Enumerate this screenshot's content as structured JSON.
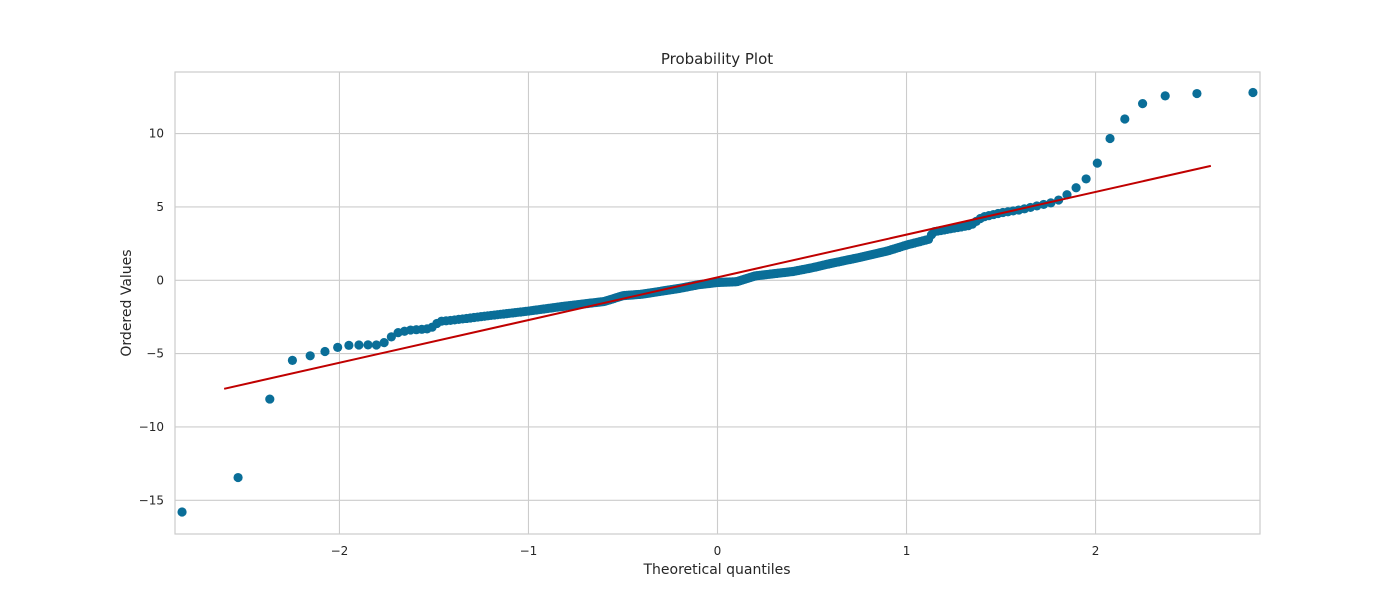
{
  "chart_data": {
    "type": "scatter",
    "title": "Probability Plot",
    "xlabel": "Theoretical quantiles",
    "ylabel": "Ordered Values",
    "xlim": [
      -2.87,
      2.87
    ],
    "ylim": [
      -17.3,
      14.2
    ],
    "xticks": [
      -2,
      -1,
      0,
      1,
      2
    ],
    "xtick_labels": [
      "−2",
      "−1",
      "0",
      "1",
      "2"
    ],
    "yticks": [
      -15,
      -10,
      -5,
      0,
      5,
      10
    ],
    "ytick_labels": [
      "−15",
      "−10",
      "−5",
      "0",
      "5",
      "10"
    ],
    "grid": true,
    "legend": "none",
    "colors": {
      "points": "#0a6e98",
      "line": "#c00000",
      "grid": "#cccccc",
      "frame": "#cccccc"
    },
    "fit_line": {
      "x": [
        -2.61,
        2.61
      ],
      "y": [
        -7.4,
        7.8
      ]
    },
    "anchors": [
      [
        -2.61,
        -15.8
      ],
      [
        -2.29,
        -5.6
      ],
      [
        -2.11,
        -5.0
      ],
      [
        -1.98,
        -4.45
      ],
      [
        -1.87,
        -4.4
      ],
      [
        -1.78,
        -4.42
      ],
      [
        -1.7,
        -3.6
      ],
      [
        -1.63,
        -3.4
      ],
      [
        -1.57,
        -3.35
      ],
      [
        -1.52,
        -3.3
      ],
      [
        -1.47,
        -2.8
      ],
      [
        -1.42,
        -2.75
      ],
      [
        -1.2,
        -2.4
      ],
      [
        -1.0,
        -2.1
      ],
      [
        -0.8,
        -1.75
      ],
      [
        -0.6,
        -1.45
      ],
      [
        -0.5,
        -1.05
      ],
      [
        -0.4,
        -0.95
      ],
      [
        -0.2,
        -0.55
      ],
      [
        -0.1,
        -0.3
      ],
      [
        0.0,
        -0.15
      ],
      [
        0.1,
        -0.1
      ],
      [
        0.2,
        0.3
      ],
      [
        0.4,
        0.6
      ],
      [
        0.5,
        0.85
      ],
      [
        0.6,
        1.15
      ],
      [
        0.75,
        1.55
      ],
      [
        0.9,
        2.0
      ],
      [
        1.0,
        2.4
      ],
      [
        1.12,
        2.8
      ],
      [
        1.14,
        3.3
      ],
      [
        1.25,
        3.55
      ],
      [
        1.34,
        3.75
      ],
      [
        1.4,
        4.3
      ],
      [
        1.5,
        4.6
      ],
      [
        1.6,
        4.8
      ],
      [
        1.7,
        5.1
      ],
      [
        1.79,
        5.35
      ],
      [
        1.87,
        6.0
      ],
      [
        1.98,
        7.25
      ],
      [
        2.11,
        10.5
      ],
      [
        2.29,
        12.5
      ],
      [
        2.61,
        12.8
      ]
    ],
    "n_points": 300
  }
}
